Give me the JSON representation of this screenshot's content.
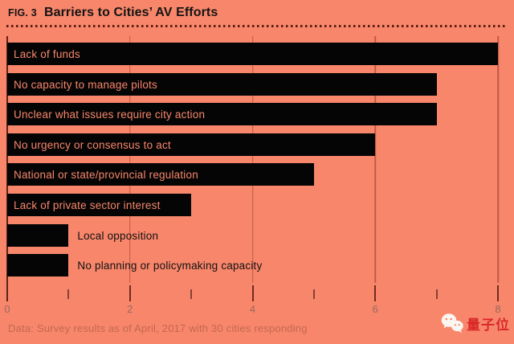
{
  "figure": {
    "tag": "FIG. 3",
    "title": "Barriers to Cities’ AV Efforts"
  },
  "chart_data": {
    "type": "bar",
    "orientation": "horizontal",
    "title": "Barriers to Cities’ AV Efforts",
    "categories": [
      "Lack of funds",
      "No capacity to manage pilots",
      "Unclear what issues require city action",
      "No urgency or consensus to act",
      "National or state/provincial regulation",
      "Lack of private sector interest",
      "Local opposition",
      "No planning or policymaking capacity"
    ],
    "values": [
      8,
      7,
      7,
      6,
      5,
      3,
      1,
      1
    ],
    "xlim": [
      0,
      8
    ],
    "x_major_ticks": [
      0,
      2,
      4,
      6,
      8
    ],
    "x_minor_ticks": [
      1,
      3,
      5,
      7
    ],
    "gridlines_at": [
      2,
      4,
      6,
      8
    ],
    "grid": "vertical-on",
    "legend": "none",
    "bar_color": "#050505",
    "label_inside_threshold": 2
  },
  "footer": {
    "source_note": "Data: Survey results as of April, 2017 with 30 cities responding"
  },
  "watermark": {
    "name": "量子位",
    "icon": "wechat-icon"
  },
  "colors": {
    "background": "#f8866b",
    "bar": "#050505",
    "gridline": "#bf5a44",
    "axis": "#5d2217",
    "tick_label": "#99695c",
    "footer_text": "#c16950",
    "watermark_red": "#da2623",
    "title_text": "#141414"
  }
}
